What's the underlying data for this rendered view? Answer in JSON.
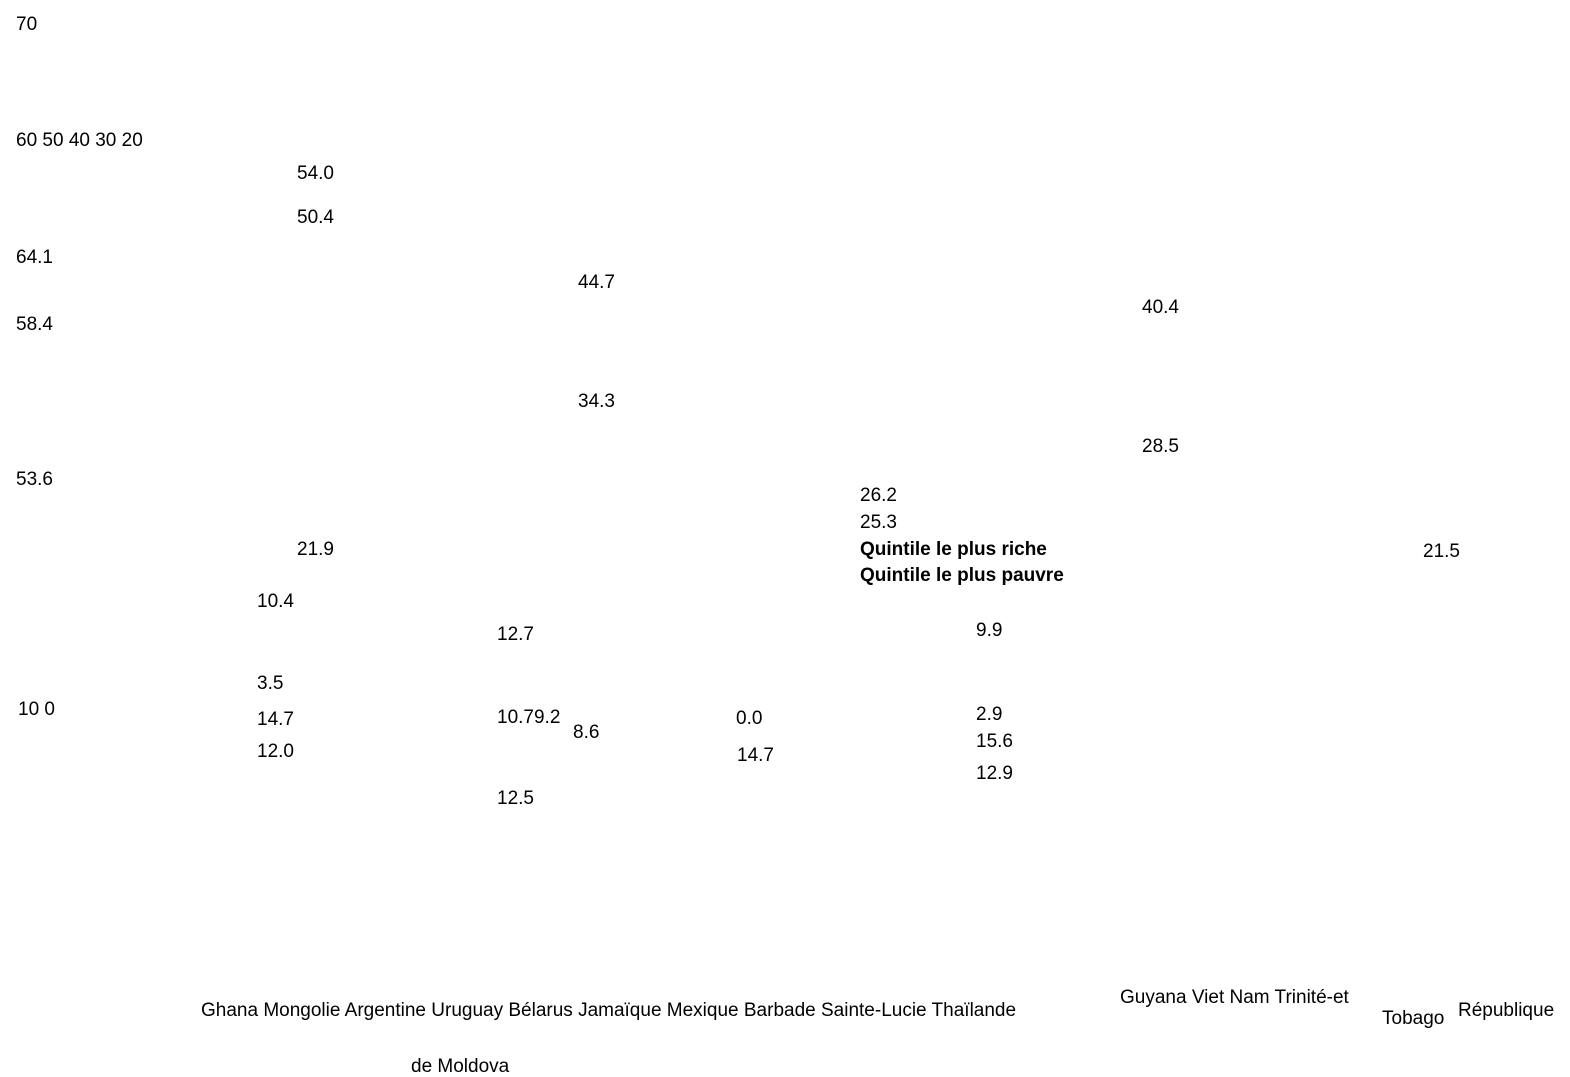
{
  "chart_data": {
    "type": "table",
    "y_ticks_top": "70",
    "y_ticks_middle": "60 50 40 30 20",
    "y_ticks_bottom": "10 0",
    "legend": {
      "richest": "Quintile le plus riche",
      "poorest": "Quintile le plus pauvre"
    },
    "countries": {
      "row1_a": "Ghana Mongolie Argentine Uruguay Bélarus Jamaïque Mexique Barbade Sainte-Lucie Thaïlande",
      "row1_b": "Guyana Viet Nam Trinité-et",
      "row1_c": "Tobago",
      "row1_d": "République",
      "row2": "de Moldova"
    },
    "value_labels": [
      "64.1",
      "58.4",
      "53.6",
      "54.0",
      "50.4",
      "21.9",
      "10.4",
      "3.5",
      "14.7",
      "12.0",
      "44.7",
      "34.3",
      "12.7",
      "10.79.2",
      "8.6",
      "12.5",
      "0.0",
      "14.7",
      "26.2",
      "25.3",
      "9.9",
      "2.9",
      "15.6",
      "12.9",
      "40.4",
      "28.5",
      "21.5"
    ]
  }
}
